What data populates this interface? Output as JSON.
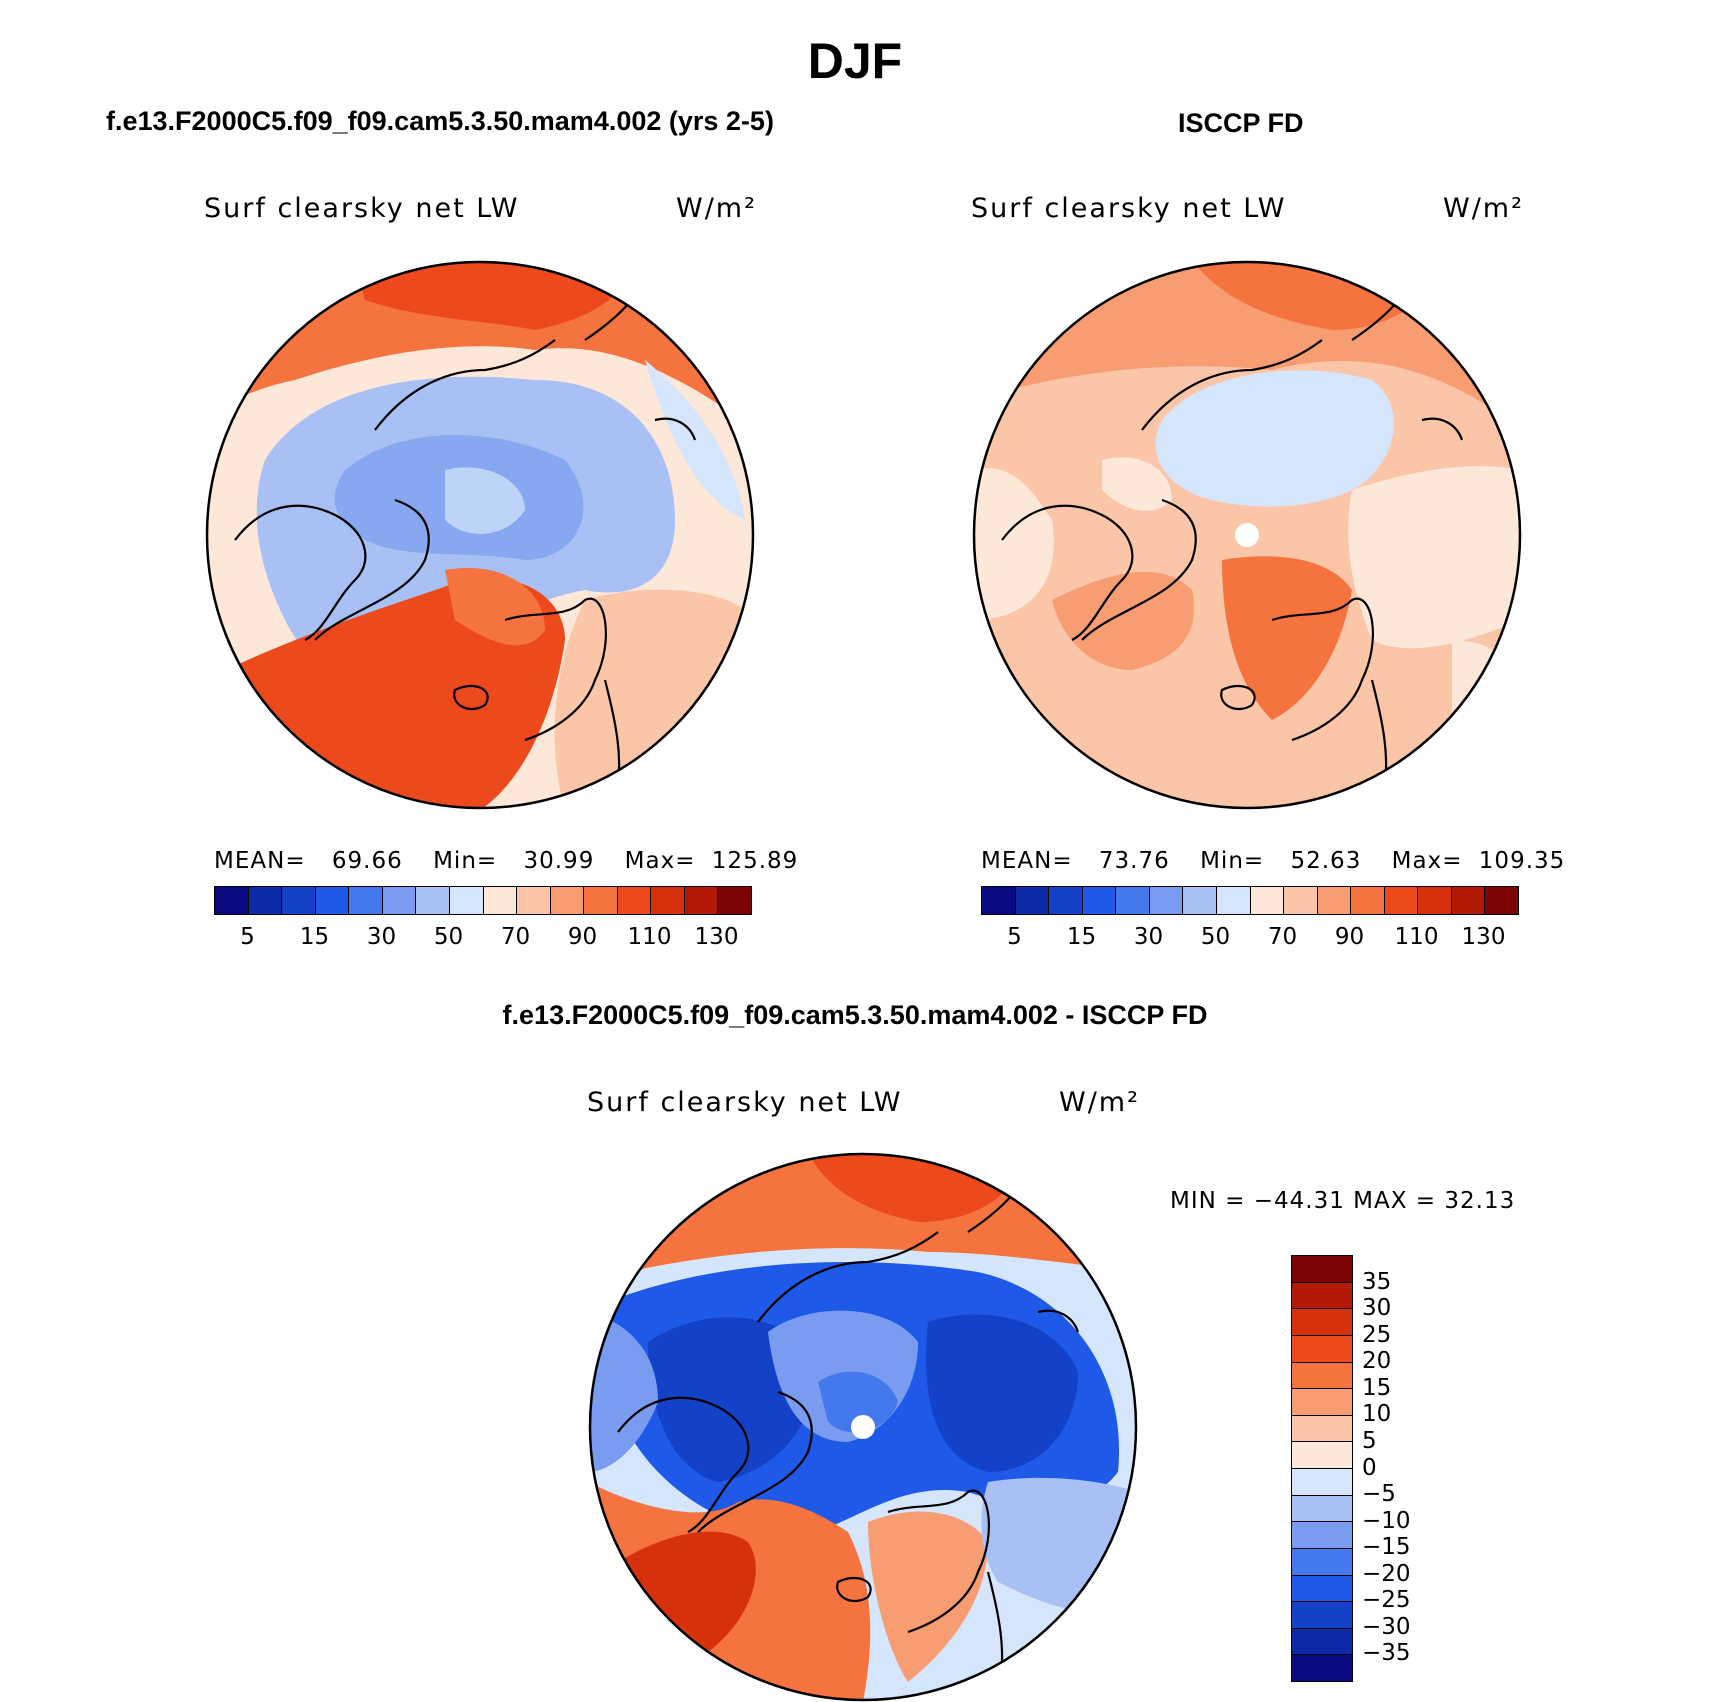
{
  "title": "DJF",
  "panels": [
    {
      "heading": "f.e13.F2000C5.f09_f09.cam5.3.50.mam4.002 (yrs 2-5)",
      "variable": "Surf clearsky net LW",
      "units": "W/m²",
      "mean_label": "MEAN=",
      "mean_value": "69.66",
      "min_label": "Min=",
      "min_value": "30.99",
      "max_label": "Max=",
      "max_value": "125.89"
    },
    {
      "heading": "ISCCP FD",
      "variable": "Surf clearsky net LW",
      "units": "W/m²",
      "mean_label": "MEAN=",
      "mean_value": "73.76",
      "min_label": "Min=",
      "min_value": "52.63",
      "max_label": "Max=",
      "max_value": "109.35"
    }
  ],
  "diff_panel": {
    "heading": "f.e13.F2000C5.f09_f09.cam5.3.50.mam4.002 - ISCCP FD",
    "variable": "Surf clearsky net LW",
    "units": "W/m²",
    "minmax": "MIN = −44.31 MAX =  32.13"
  },
  "colorbar_abs": {
    "colors": [
      "#0a0a82",
      "#0a2aa6",
      "#1341c8",
      "#1f59e8",
      "#4479ee",
      "#7a9cf0",
      "#a8c0f4",
      "#d5e5fb",
      "#fde7d8",
      "#fbc5a7",
      "#f89c72",
      "#f5733f",
      "#ec4a1c",
      "#d6310c",
      "#b21a06",
      "#7c0404"
    ],
    "tick_labels": [
      "5",
      "15",
      "30",
      "50",
      "70",
      "90",
      "110",
      "130"
    ]
  },
  "colorbar_diff": {
    "colors": [
      "#7c0404",
      "#b21a06",
      "#d6310c",
      "#ec4a1c",
      "#f5733f",
      "#f89c72",
      "#fbc5a7",
      "#fde7d8",
      "#d5e5fb",
      "#a8c0f4",
      "#7a9cf0",
      "#4479ee",
      "#1f59e8",
      "#1341c8",
      "#0a2aa6",
      "#0a0a82"
    ],
    "tick_labels": [
      "35",
      "30",
      "25",
      "20",
      "15",
      "10",
      "5",
      "0",
      "−5",
      "−10",
      "−15",
      "−20",
      "−25",
      "−30",
      "−35"
    ]
  }
}
